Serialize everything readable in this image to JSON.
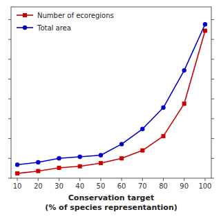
{
  "chart_data": {
    "type": "line",
    "x": [
      10,
      20,
      30,
      40,
      50,
      60,
      70,
      80,
      90,
      100
    ],
    "series": [
      {
        "name": "Number of ecoregions",
        "color": "#cc0000",
        "marker": "square",
        "values": [
          0.03,
          0.045,
          0.065,
          0.075,
          0.095,
          0.125,
          0.175,
          0.265,
          0.47,
          0.93
        ]
      },
      {
        "name": "Total area",
        "color": "#0000cc",
        "marker": "circle",
        "values": [
          0.085,
          0.1,
          0.125,
          0.135,
          0.145,
          0.215,
          0.31,
          0.445,
          0.68,
          0.97
        ]
      }
    ],
    "xlabel": "Conservation target\n(% of species representantion)",
    "xlim": [
      7,
      103
    ],
    "xticks": [
      10,
      20,
      30,
      40,
      50,
      60,
      70,
      80,
      90,
      100
    ],
    "ylim": [
      0,
      1.08
    ],
    "yticks": [
      0,
      0.125,
      0.25,
      0.375,
      0.5,
      0.625,
      0.75,
      0.875,
      1.0
    ],
    "tick_labels": "x",
    "legend": "upper left",
    "grid": false
  }
}
